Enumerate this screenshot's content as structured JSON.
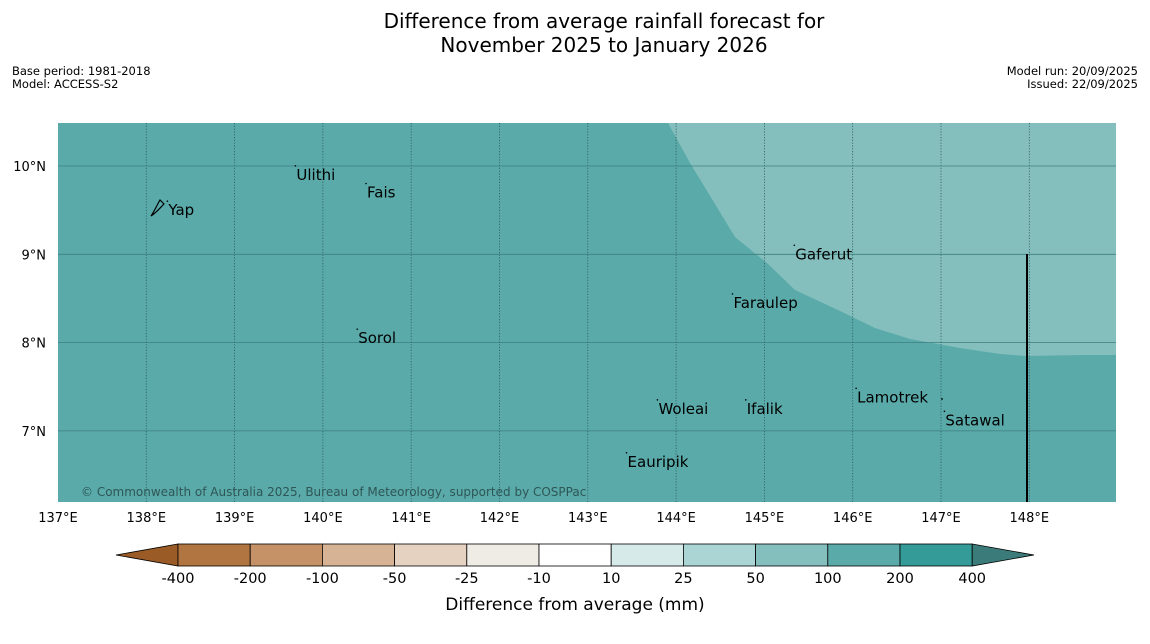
{
  "title": {
    "line1": "Difference from average rainfall forecast for",
    "line2": "November 2025 to January 2026"
  },
  "meta_left": {
    "base_period": "Base period: 1981-2018",
    "model": "Model: ACCESS-S2"
  },
  "meta_right": {
    "model_run": "Model run: 20/09/2025",
    "issued": "Issued: 22/09/2025"
  },
  "map": {
    "lon_ticks": [
      "137°E",
      "138°E",
      "139°E",
      "140°E",
      "141°E",
      "142°E",
      "143°E",
      "144°E",
      "145°E",
      "146°E",
      "147°E",
      "148°E"
    ],
    "lat_ticks": [
      "10°N",
      "9°N",
      "8°N",
      "7°N"
    ],
    "places": [
      {
        "name": "Yap",
        "lon": 138.25,
        "lat": 9.5
      },
      {
        "name": "Ulithi",
        "lon": 139.7,
        "lat": 9.9
      },
      {
        "name": "Fais",
        "lon": 140.5,
        "lat": 9.7
      },
      {
        "name": "Gaferut",
        "lon": 145.35,
        "lat": 9.0
      },
      {
        "name": "Faraulep",
        "lon": 144.65,
        "lat": 8.45
      },
      {
        "name": "Sorol",
        "lon": 140.4,
        "lat": 8.05
      },
      {
        "name": "Lamotrek",
        "lon": 146.05,
        "lat": 7.38
      },
      {
        "name": "Woleai",
        "lon": 143.8,
        "lat": 7.25
      },
      {
        "name": "Ifalik",
        "lon": 144.8,
        "lat": 7.25
      },
      {
        "name": "Satawal",
        "lon": 147.05,
        "lat": 7.12
      },
      {
        "name": "Eauripik",
        "lon": 143.45,
        "lat": 6.65
      }
    ],
    "copyright": "© Commonwealth of Australia 2025, Bureau of Meteorology, supported by COSPPac",
    "base_category": "100 to 200",
    "region_category": "50 to 100",
    "base_color": "#5aaaaa",
    "region_color": "#84bfbe"
  },
  "colorbar": {
    "labels": [
      "-400",
      "-200",
      "-100",
      "-50",
      "-25",
      "-10",
      "10",
      "25",
      "50",
      "100",
      "200",
      "400"
    ],
    "colors": [
      "#9a5b26",
      "#b07540",
      "#c49266",
      "#d6b394",
      "#e5d2c1",
      "#efebe5",
      "#ffffff",
      "#d6eaea",
      "#abd5d5",
      "#84bfbe",
      "#5aaaaa",
      "#349b99",
      "#3b7c7a"
    ],
    "label": "Difference from average (mm)"
  }
}
